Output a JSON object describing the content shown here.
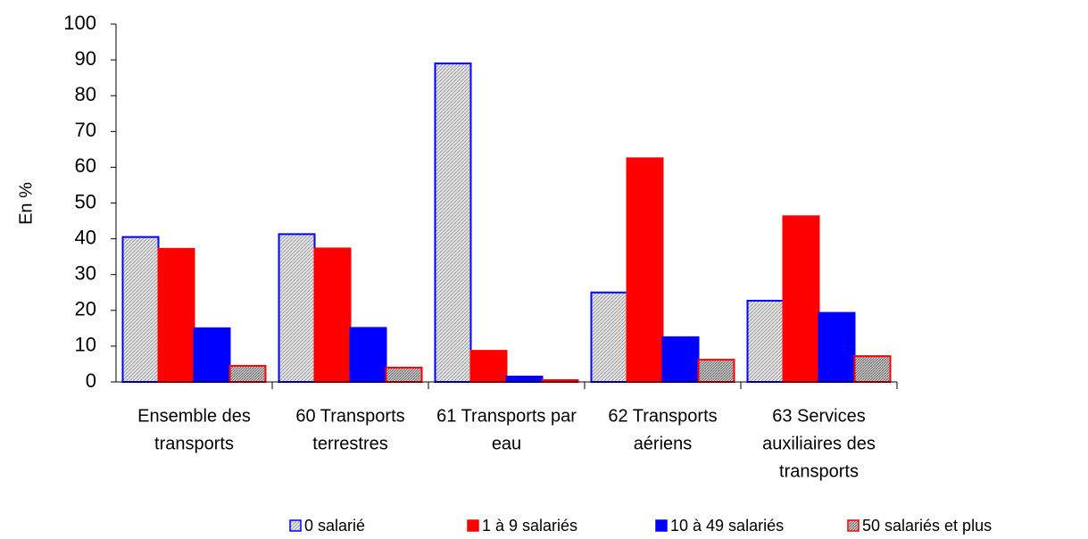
{
  "chart_data": {
    "type": "bar",
    "y_label": "En %",
    "categories": [
      [
        "Ensemble des",
        "transports"
      ],
      [
        "60 Transports",
        "terrestres"
      ],
      [
        "61 Transports par",
        "eau"
      ],
      [
        "62 Transports",
        "aériens"
      ],
      [
        "63 Services",
        "auxiliaires des",
        "transports"
      ]
    ],
    "series": [
      {
        "name": "0 salarié",
        "color": "#d0d0d0",
        "edgecolor": "#0000ff",
        "hatch": true,
        "values": [
          40.5,
          41.3,
          89,
          25,
          22.7
        ]
      },
      {
        "name": "1 à 9 salariés",
        "color": "#ff0000",
        "edgecolor": "#ff0000",
        "hatch": false,
        "values": [
          37.2,
          37.3,
          8.7,
          62.5,
          46.3
        ]
      },
      {
        "name": "10 à 49 salariés",
        "color": "#0000ff",
        "edgecolor": "#0000ff",
        "hatch": false,
        "values": [
          15,
          15.1,
          1.5,
          12.5,
          19.3
        ]
      },
      {
        "name": "50 salariés et plus",
        "color": "#b0b0b0",
        "edgecolor": "#ff0000",
        "hatch": true,
        "values": [
          4.5,
          4,
          0.5,
          6.2,
          7.2
        ]
      }
    ],
    "ylim": [
      0,
      100
    ],
    "yticks": [
      0,
      10,
      20,
      30,
      40,
      50,
      60,
      70,
      80,
      90,
      100
    ],
    "grid": false,
    "legend": "bottom"
  }
}
